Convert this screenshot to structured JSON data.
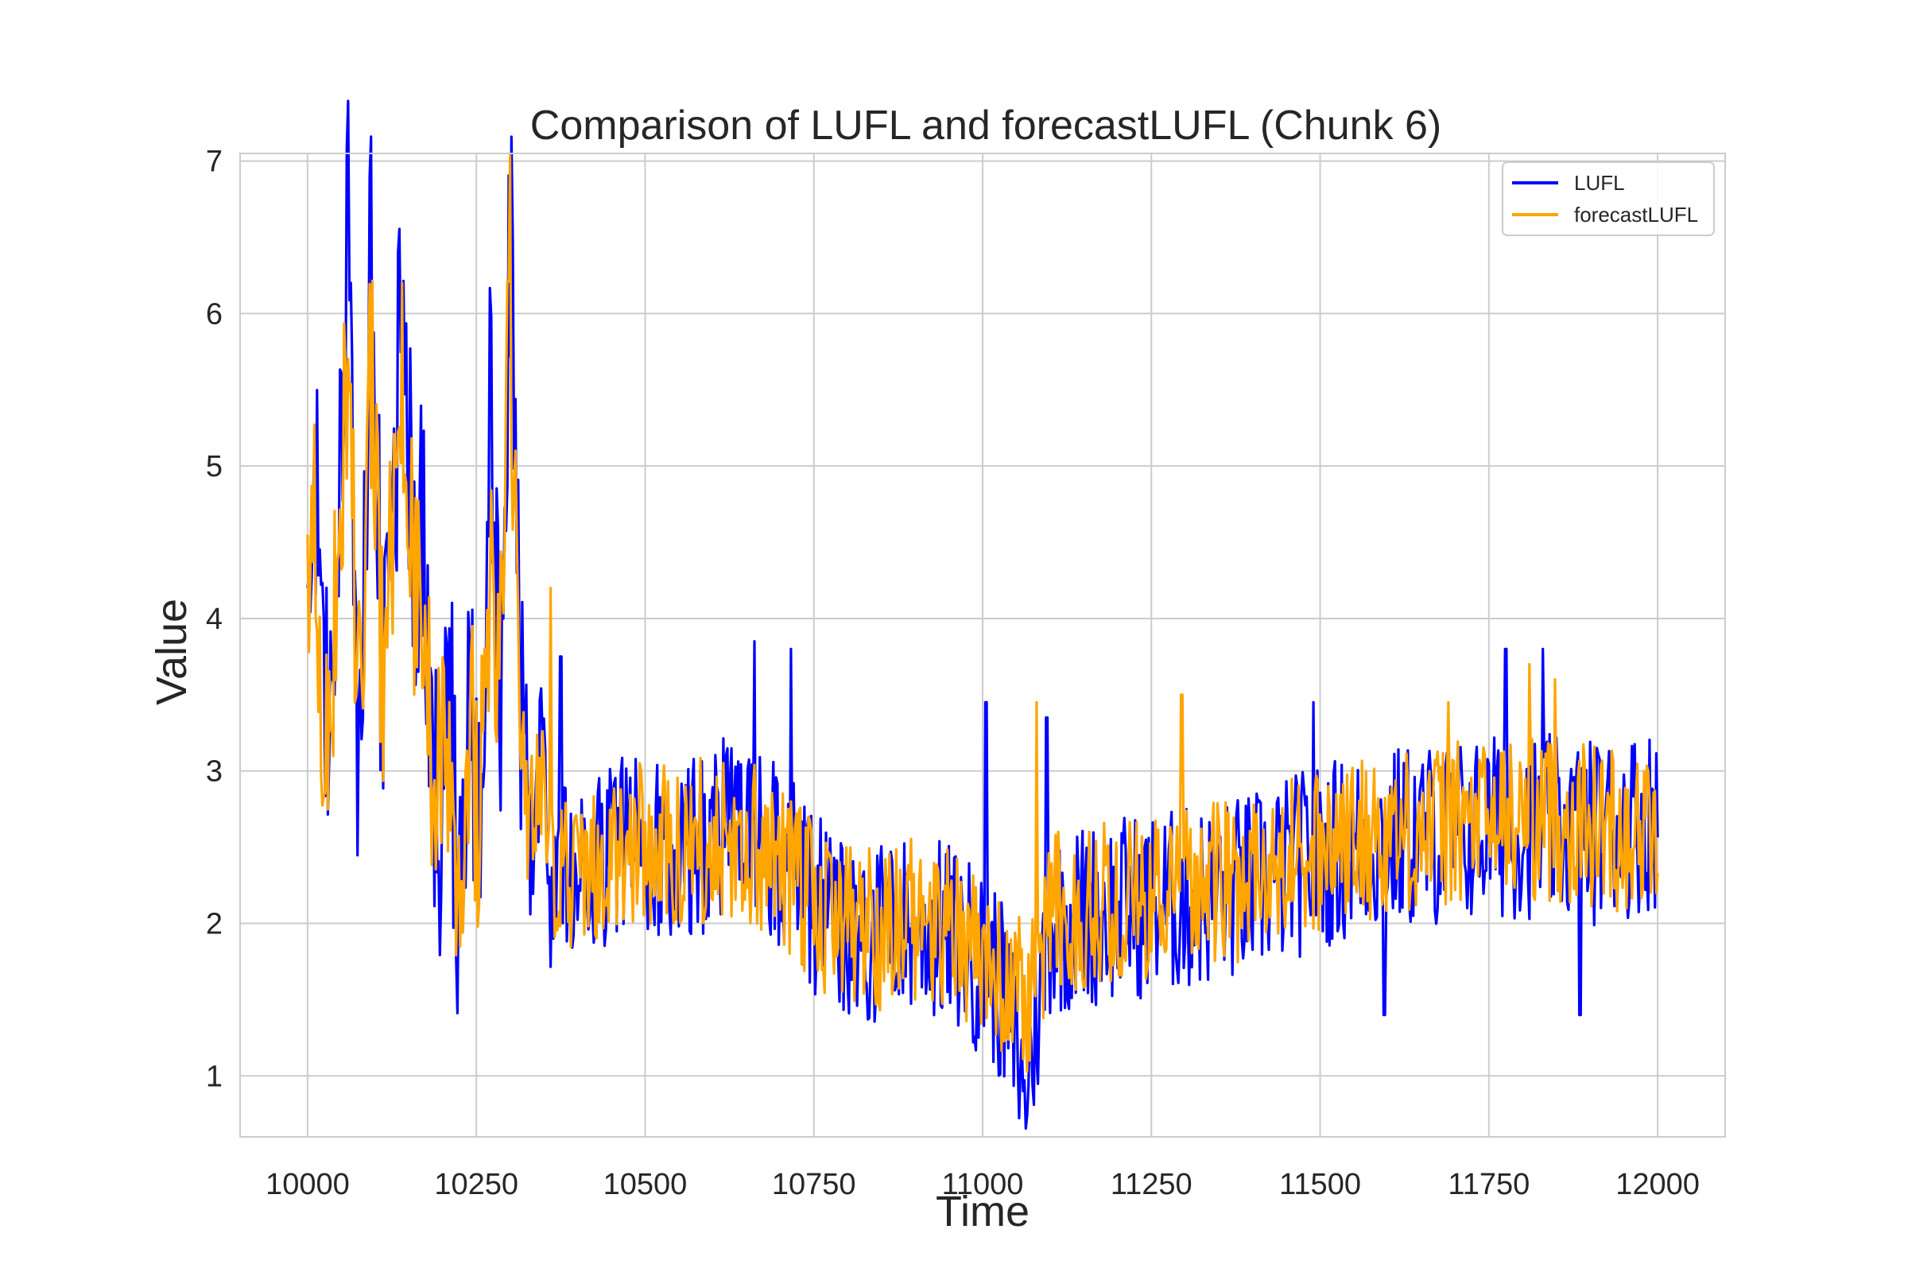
{
  "chart_data": {
    "type": "line",
    "title": "Comparison of LUFL and forecastLUFL (Chunk 6)",
    "xlabel": "Time",
    "ylabel": "Value",
    "xlim": [
      9900,
      12100
    ],
    "ylim": [
      0.6,
      7.05
    ],
    "x_ticks": [
      10000,
      10250,
      10500,
      10750,
      11000,
      11250,
      11500,
      11750,
      12000
    ],
    "y_ticks": [
      1,
      2,
      3,
      4,
      5,
      6,
      7
    ],
    "grid": true,
    "legend_position": "top-right",
    "x_range": [
      10000,
      12000
    ],
    "series": [
      {
        "name": "LUFL",
        "color": "#0000ff",
        "anchors": [
          [
            10000,
            4.2
          ],
          [
            10010,
            5.05
          ],
          [
            10025,
            3.1
          ],
          [
            10045,
            4.5
          ],
          [
            10060,
            6.45
          ],
          [
            10075,
            3.0
          ],
          [
            10095,
            6.5
          ],
          [
            10110,
            3.6
          ],
          [
            10130,
            4.85
          ],
          [
            10140,
            6.7
          ],
          [
            10155,
            4.4
          ],
          [
            10170,
            4.55
          ],
          [
            10180,
            3.2
          ],
          [
            10195,
            2.6
          ],
          [
            10210,
            3.55
          ],
          [
            10225,
            1.95
          ],
          [
            10240,
            3.55
          ],
          [
            10255,
            2.5
          ],
          [
            10270,
            5.5
          ],
          [
            10285,
            3.2
          ],
          [
            10300,
            6.6
          ],
          [
            10315,
            3.5
          ],
          [
            10330,
            2.6
          ],
          [
            10345,
            3.2
          ],
          [
            10360,
            2.3
          ],
          [
            10375,
            2.6
          ],
          [
            10390,
            2.1
          ],
          [
            10420,
            2.4
          ],
          [
            10480,
            2.6
          ],
          [
            10560,
            2.45
          ],
          [
            10620,
            2.65
          ],
          [
            10680,
            2.5
          ],
          [
            10720,
            2.3
          ],
          [
            10780,
            1.95
          ],
          [
            10830,
            1.9
          ],
          [
            10900,
            2.0
          ],
          [
            10960,
            1.9
          ],
          [
            11020,
            1.65
          ],
          [
            11065,
            0.95
          ],
          [
            11100,
            2.0
          ],
          [
            11200,
            2.1
          ],
          [
            11300,
            2.15
          ],
          [
            11400,
            2.25
          ],
          [
            11500,
            2.45
          ],
          [
            11600,
            2.55
          ],
          [
            11700,
            2.6
          ],
          [
            11800,
            2.65
          ],
          [
            11900,
            2.6
          ],
          [
            12000,
            2.7
          ]
        ],
        "amplitude": 0.62,
        "spikes": [
          [
            10375,
            3.75
          ],
          [
            10662,
            3.85
          ],
          [
            10716,
            3.8
          ],
          [
            11005,
            3.45
          ],
          [
            11095,
            3.35
          ],
          [
            11490,
            3.45
          ],
          [
            11595,
            1.4
          ],
          [
            11775,
            3.8
          ],
          [
            11830,
            3.8
          ],
          [
            11885,
            1.4
          ],
          [
            11060,
            0.9
          ]
        ]
      },
      {
        "name": "forecastLUFL",
        "color": "#ffa500",
        "anchors": [
          [
            10000,
            4.55
          ],
          [
            10010,
            4.5
          ],
          [
            10025,
            3.3
          ],
          [
            10045,
            4.2
          ],
          [
            10060,
            5.9
          ],
          [
            10075,
            3.4
          ],
          [
            10095,
            5.7
          ],
          [
            10110,
            3.7
          ],
          [
            10130,
            4.7
          ],
          [
            10140,
            5.8
          ],
          [
            10155,
            4.2
          ],
          [
            10170,
            4.3
          ],
          [
            10180,
            3.3
          ],
          [
            10195,
            2.8
          ],
          [
            10210,
            3.4
          ],
          [
            10225,
            2.1
          ],
          [
            10240,
            3.3
          ],
          [
            10255,
            2.7
          ],
          [
            10270,
            4.2
          ],
          [
            10285,
            3.4
          ],
          [
            10300,
            6.2
          ],
          [
            10315,
            3.2
          ],
          [
            10330,
            2.6
          ],
          [
            10345,
            3.0
          ],
          [
            10360,
            2.3
          ],
          [
            10375,
            2.5
          ],
          [
            10390,
            2.1
          ],
          [
            10420,
            2.4
          ],
          [
            10480,
            2.55
          ],
          [
            10560,
            2.5
          ],
          [
            10620,
            2.6
          ],
          [
            10680,
            2.45
          ],
          [
            10720,
            2.3
          ],
          [
            10780,
            2.0
          ],
          [
            10830,
            1.95
          ],
          [
            10900,
            2.05
          ],
          [
            10960,
            1.95
          ],
          [
            11020,
            1.75
          ],
          [
            11065,
            1.5
          ],
          [
            11100,
            2.05
          ],
          [
            11200,
            2.15
          ],
          [
            11300,
            2.2
          ],
          [
            11400,
            2.3
          ],
          [
            11500,
            2.5
          ],
          [
            11600,
            2.6
          ],
          [
            11700,
            2.65
          ],
          [
            11800,
            2.7
          ],
          [
            11900,
            2.65
          ],
          [
            12000,
            2.6
          ]
        ],
        "amplitude": 0.55,
        "spikes": [
          [
            10360,
            4.2
          ],
          [
            11080,
            3.45
          ],
          [
            11295,
            3.5
          ],
          [
            11690,
            3.45
          ],
          [
            11810,
            3.7
          ],
          [
            11848,
            3.6
          ],
          [
            11070,
            1.1
          ]
        ]
      }
    ]
  }
}
